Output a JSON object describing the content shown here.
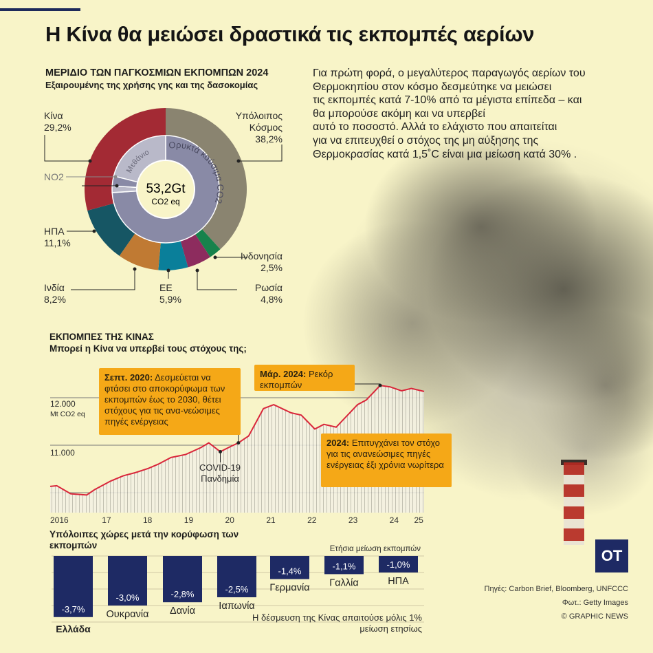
{
  "title": "Η Κίνα θα μειώσει δραστικά τις εκπομπές αερίων",
  "intro_lines": [
    "Για πρώτη φορά, ο μεγαλύτερος παραγωγός αερίων του",
    "Θερμοκηπίου στον κόσμο δεσμεύτηκε να μειώσει",
    "τις εκπομπές κατά 7-10% από τα μέγιστα επίπεδα – και",
    "θα μπορούσε ακόμη και να υπερβεί",
    "αυτό το ποσοστό. Αλλά το ελάχιστο που απαιτείται",
    "για να επιτευχθεί ο στόχος της μη αύξησης της",
    "Θερμοκρασίας κατά 1,5˚C είναι μια μείωση κατά 30% ."
  ],
  "colors": {
    "accent": "#f5a817",
    "navy": "#1e2a64",
    "line": "#d9263a"
  },
  "chart_data": [
    {
      "type": "pie",
      "title": "ΜΕΡΙΔΙΟ ΤΩΝ ΠΑΓΚΟΣΜΙΩΝ ΕΚΠΟΜΠΩΝ 2024",
      "subtitle": "Εξαιρουμένης της χρήσης γης και της δασοκομίας",
      "center_value": "53,2Gt",
      "center_unit": "CO2 eq",
      "slices": [
        {
          "name": "Υπόλοιπος Κόσμος",
          "value": 38.2,
          "label": "38,2%",
          "color": "#8a8470"
        },
        {
          "name": "Ινδονησία",
          "value": 2.5,
          "label": "2,5%",
          "color": "#17824c"
        },
        {
          "name": "Ρωσία",
          "value": 4.8,
          "label": "4,8%",
          "color": "#8d2c5e"
        },
        {
          "name": "ΕΕ",
          "value": 5.9,
          "label": "5,9%",
          "color": "#0a7f9a"
        },
        {
          "name": "Ινδία",
          "value": 8.2,
          "label": "8,2%",
          "color": "#c07a33"
        },
        {
          "name": "ΗΠΑ",
          "value": 11.1,
          "label": "11,1%",
          "color": "#165664"
        },
        {
          "name": "Κίνα",
          "value": 29.2,
          "label": "29,2%",
          "color": "#a32a34"
        }
      ],
      "inner_ring": [
        {
          "name": "Ορυκτά καύσιμα CO2",
          "value": 74,
          "color": "#898aa6"
        },
        {
          "name": "",
          "value": 2,
          "color": "#b9b9c9"
        },
        {
          "name": "NO2",
          "value": 3,
          "color": "#898aa6"
        },
        {
          "name": "Μεθάνιο",
          "value": 21,
          "color": "#b9b9c9"
        }
      ]
    },
    {
      "type": "line",
      "title": "ΕΚΠΟΜΠΕΣ ΤΗΣ ΚΙΝΑΣ",
      "subtitle": "Μπορεί η Κίνα να υπερβεί τους στόχους της;",
      "ylabel": "Mt CO2 eq",
      "ylim": [
        9600,
        12500
      ],
      "xlim": [
        2016.13,
        2025.23
      ],
      "yticks": [
        {
          "v": 12000,
          "label": "12.000"
        },
        {
          "v": 11000,
          "label": "11.000"
        },
        {
          "v": 10000,
          "label": ""
        }
      ],
      "xticks": [
        {
          "v": 2016.13,
          "label": "2016"
        },
        {
          "v": 2017.5,
          "label": "17"
        },
        {
          "v": 2018.5,
          "label": "18"
        },
        {
          "v": 2019.5,
          "label": "19"
        },
        {
          "v": 2020.5,
          "label": "20"
        },
        {
          "v": 2021.5,
          "label": "21"
        },
        {
          "v": 2022.5,
          "label": "22"
        },
        {
          "v": 2023.5,
          "label": "23"
        },
        {
          "v": 2024.5,
          "label": "24"
        },
        {
          "v": 2025.1,
          "label": "25"
        }
      ],
      "x": [
        2016.13,
        2016.29,
        2016.63,
        2017.02,
        2017.21,
        2017.6,
        2017.91,
        2018.21,
        2018.52,
        2018.76,
        2019.07,
        2019.43,
        2019.8,
        2019.99,
        2020.27,
        2020.53,
        2020.71,
        2020.96,
        2021.32,
        2021.57,
        2021.99,
        2022.24,
        2022.57,
        2022.79,
        2023.09,
        2023.61,
        2023.82,
        2024.16,
        2024.4,
        2024.68,
        2024.92,
        2025.23
      ],
      "y": [
        10132,
        10146,
        9976,
        9951,
        10063,
        10244,
        10356,
        10424,
        10512,
        10600,
        10741,
        10805,
        10951,
        11049,
        10863,
        10976,
        11049,
        11195,
        11771,
        11854,
        11683,
        11634,
        11341,
        11439,
        11380,
        11854,
        11951,
        12259,
        12229,
        12146,
        12195,
        12132
      ],
      "annotations": [
        {
          "bold": "Σεπτ. 2020:",
          "text": "Δεσμεύεται να φτάσει στο αποκορύφωμα των εκπομπών έως το 2030, θέτει στόχους για τις ανα-νεώσιμες πηγές ενέργειας",
          "x": 2020.71
        },
        {
          "bold": "Μάρ. 2024:",
          "text": "Ρεκόρ εκπομπών",
          "x": 2024.16
        },
        {
          "bold": "2024:",
          "text": "Επιτυγχάνει τον στόχο για τις ανανεώσιμες πηγές ενέργειας έξι χρόνια νωρίτερα"
        },
        {
          "bold": "",
          "text": "COVID-19 Πανδημία",
          "x": 2020.27
        }
      ]
    },
    {
      "type": "bar",
      "title": "Υπόλοιπες χώρες μετά την κορύφωση των εκπομπών",
      "ylabel": "Ετήσια μείωση εκπομπών",
      "categories": [
        "Ελλάδα",
        "Ουκρανία",
        "Δανία",
        "Ιαπωνία",
        "Γερμανία",
        "Γαλλία",
        "ΗΠΑ"
      ],
      "values": [
        -3.7,
        -3.0,
        -2.8,
        -2.5,
        -1.4,
        -1.1,
        -1.0
      ],
      "labels": [
        "-3,7%",
        "-3,0%",
        "-2,8%",
        "-2,5%",
        "-1,4%",
        "-1,1%",
        "-1,0%"
      ],
      "note": "Η δέσμευση της Κίνας απαιτούσε μόλις 1% μείωση ετησίως"
    }
  ],
  "logo": "OT",
  "credits": [
    "Πηγές: Carbon Brief, Bloomberg, UNFCCC",
    "Φωτ.: Getty Images",
    "© GRAPHIC NEWS"
  ]
}
